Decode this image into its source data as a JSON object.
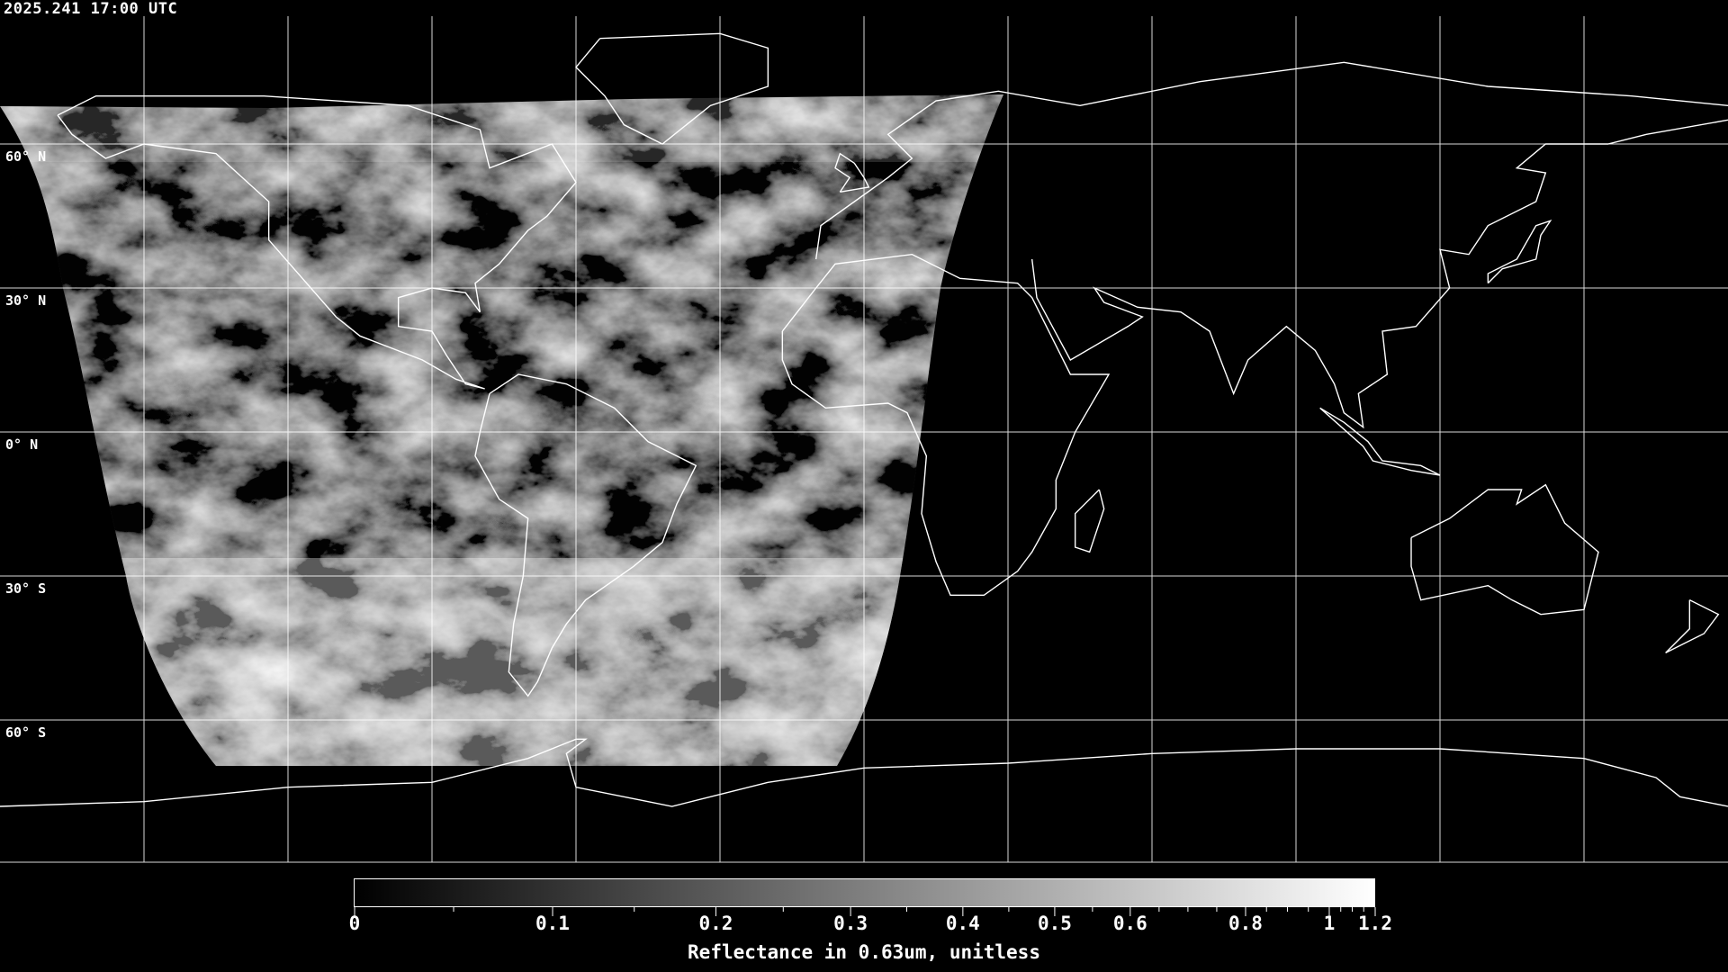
{
  "header": {
    "timestamp": "2025.241 17:00 UTC"
  },
  "map": {
    "projection": "equirectangular",
    "graticule_spacing_deg": 30,
    "latitude_labels": [
      "60° N",
      "30° N",
      "0° N",
      "30° S",
      "60° S"
    ],
    "coastline_color": "#ffffff",
    "gridline_color": "#ffffff",
    "background_color": "#000000",
    "imagery": "visible reflectance (grayscale)"
  },
  "colorbar": {
    "tick_labels": [
      "0",
      "0.1",
      "0.2",
      "0.3",
      "0.4",
      "0.5",
      "0.6",
      "0.8",
      "1",
      "1.2"
    ],
    "range": [
      0,
      1.2
    ],
    "colormap": [
      "#000000",
      "#ffffff"
    ],
    "title": "Reflectance in 0.63um, unitless"
  }
}
